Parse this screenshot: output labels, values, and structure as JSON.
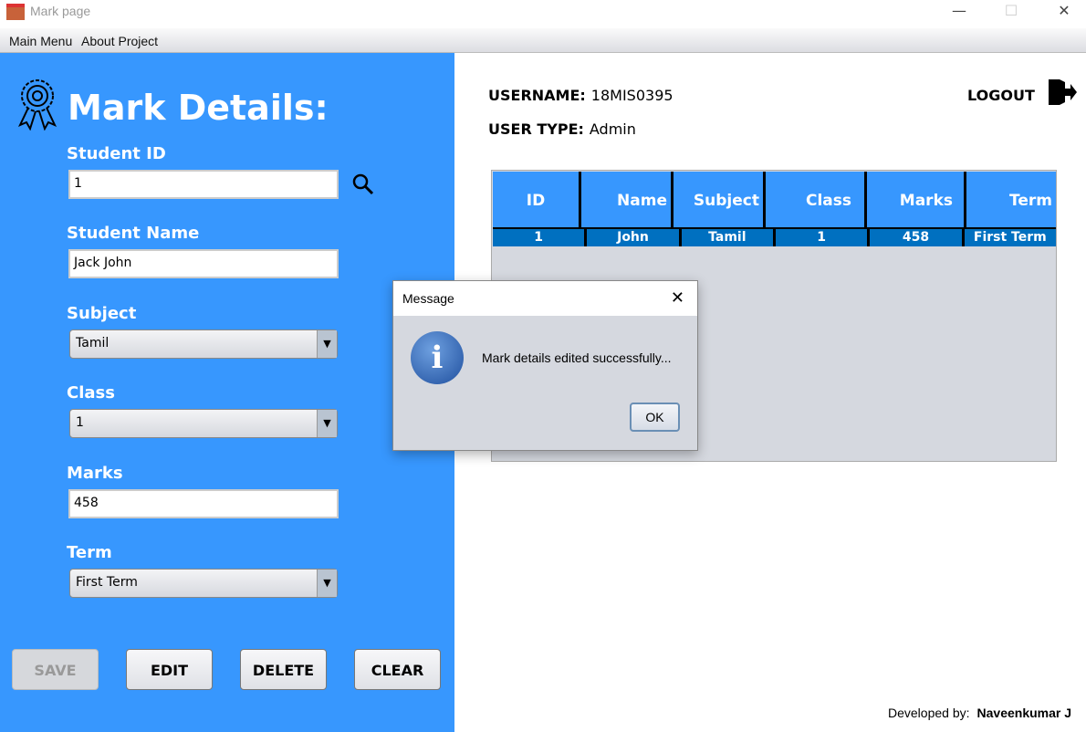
{
  "window": {
    "title": "Mark page",
    "minimize": "—",
    "maximize": "☐",
    "close": "✕"
  },
  "menu": {
    "items": [
      "Main Menu",
      "About Project"
    ]
  },
  "form": {
    "heading": "Mark Details:",
    "student_id_label": "Student ID",
    "student_id": "1",
    "student_name_label": "Student Name",
    "student_name": "Jack John",
    "subject_label": "Subject",
    "subject": "Tamil",
    "class_label": "Class",
    "class": "1",
    "marks_label": "Marks",
    "marks": "458",
    "term_label": "Term",
    "term": "First Term",
    "buttons": {
      "save": "SAVE",
      "edit": "EDIT",
      "delete": "DELETE",
      "clear": "CLEAR"
    }
  },
  "user": {
    "username_label": "USERNAME:",
    "username": "18MIS0395",
    "type_label": "USER TYPE:",
    "type": "Admin",
    "logout": "LOGOUT"
  },
  "table": {
    "headers": [
      "ID",
      "Name",
      "Subject",
      "Class",
      "Marks",
      "Term"
    ],
    "rows": [
      [
        "1",
        "John",
        "Tamil",
        "1",
        "458",
        "First Term"
      ]
    ]
  },
  "dialog": {
    "title": "Message",
    "message": "Mark details edited successfully...",
    "ok": "OK"
  },
  "footer": {
    "label": "Developed by:",
    "author": "Naveenkumar J"
  },
  "colors": {
    "panel": "#3797fe",
    "row": "#0070c0"
  }
}
